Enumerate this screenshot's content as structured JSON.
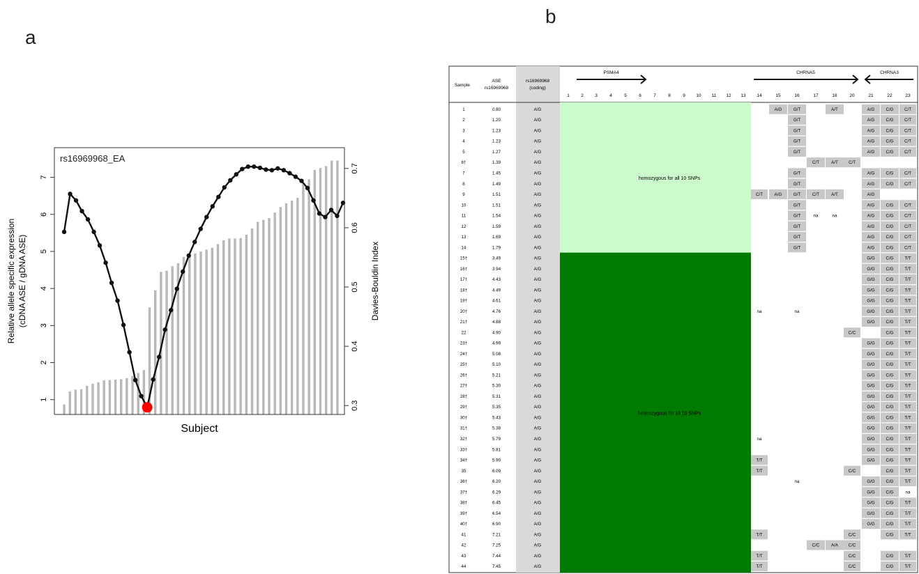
{
  "panels": {
    "a": "a",
    "b": "b"
  },
  "chart_data": [
    {
      "type": "bar+line",
      "title": "rs16969968_EA",
      "xlabel": "Subject",
      "ylabel": [
        "Relative allele specific expression",
        "(cDNA ASE / gDNA ASE)"
      ],
      "y2label": "Davies-Bouldin Index",
      "ylim": [
        0.6,
        7.8
      ],
      "yticks": [
        1,
        2,
        3,
        4,
        5,
        6,
        7
      ],
      "y2lim": [
        0.285,
        0.735
      ],
      "y2ticks": [
        0.3,
        0.4,
        0.5,
        0.6,
        0.7
      ],
      "series": [
        {
          "type": "bar",
          "axis": "left",
          "values": [
            0.87,
            1.22,
            1.27,
            1.28,
            1.37,
            1.43,
            1.47,
            1.52,
            1.53,
            1.54,
            1.55,
            1.58,
            1.64,
            1.72,
            1.8,
            3.49,
            3.95,
            4.45,
            4.48,
            4.6,
            4.68,
            4.85,
            4.9,
            4.95,
            5.0,
            5.05,
            5.1,
            5.2,
            5.3,
            5.35,
            5.35,
            5.36,
            5.45,
            5.62,
            5.8,
            5.85,
            5.9,
            6.05,
            6.2,
            6.3,
            6.37,
            6.45,
            6.85,
            6.95,
            7.2,
            7.25,
            7.3,
            7.45,
            7.45
          ]
        },
        {
          "type": "line",
          "axis": "right",
          "values": [
            0.593,
            0.657,
            0.646,
            0.628,
            0.614,
            0.593,
            0.57,
            0.541,
            0.507,
            0.477,
            0.436,
            0.39,
            0.343,
            0.316,
            0.297,
            0.344,
            0.382,
            0.428,
            0.461,
            0.497,
            0.526,
            0.553,
            0.576,
            0.598,
            0.618,
            0.636,
            0.652,
            0.668,
            0.68,
            0.69,
            0.699,
            0.703,
            0.703,
            0.701,
            0.698,
            0.697,
            0.7,
            0.697,
            0.692,
            0.686,
            0.679,
            0.667,
            0.646,
            0.624,
            0.618,
            0.63,
            0.62,
            0.642
          ],
          "highlight_index": 14,
          "highlight_color": "#ff0000"
        }
      ]
    },
    {
      "type": "table",
      "headers": {
        "sample": "Sample",
        "ase": [
          "ASE",
          "rs16969968"
        ],
        "rs": [
          "rs16969968",
          "(coding)"
        ]
      },
      "genes": [
        {
          "name": "PSMA4",
          "direction": "right",
          "from": 2,
          "to": 6
        },
        {
          "name": "CHRNA5",
          "direction": "right",
          "from": 14,
          "to": 20
        },
        {
          "name": "CHRNA3",
          "direction": "left",
          "from": 21,
          "to": 23
        }
      ],
      "snp_numbers": [
        "1",
        "2",
        "3",
        "4",
        "5",
        "6",
        "7",
        "8",
        "9",
        "10",
        "11",
        "12",
        "13",
        "14",
        "15",
        "16",
        "17",
        "18",
        "20",
        "21",
        "22",
        "23"
      ],
      "block_labels": {
        "homozygous": "homozygous for all 10 SNPs",
        "heterozygous": "heterozygous for all 10 SNPs"
      },
      "colors": {
        "homozygous": "#ccfccc",
        "heterozygous": "#007a00",
        "gray_cell": "#c8c8c8",
        "rs_column": "#d9d9d9"
      },
      "rows": [
        {
          "sample": "1",
          "ase": "0.80",
          "rs": "A/G",
          "block": "homo",
          "cells": {
            "15": "A/G",
            "16": "G/T",
            "18": "A/T",
            "21": "A/G",
            "22": "C/G",
            "23": "C/T"
          }
        },
        {
          "sample": "2",
          "ase": "1.20",
          "rs": "A/G",
          "block": "homo",
          "cells": {
            "16": "G/T",
            "21": "A/G",
            "22": "C/G",
            "23": "C/T"
          }
        },
        {
          "sample": "3",
          "ase": "1.23",
          "rs": "A/G",
          "block": "homo",
          "cells": {
            "16": "G/T",
            "21": "A/G",
            "22": "C/G",
            "23": "C/T"
          }
        },
        {
          "sample": "4",
          "ase": "1.23",
          "rs": "A/G",
          "block": "homo",
          "cells": {
            "16": "G/T",
            "21": "A/G",
            "22": "C/G",
            "23": "C/T"
          }
        },
        {
          "sample": "5",
          "ase": "1.27",
          "rs": "A/G",
          "block": "homo",
          "cells": {
            "16": "G/T",
            "21": "A/G",
            "22": "C/G",
            "23": "C/T"
          }
        },
        {
          "sample": "6†",
          "ase": "1.39",
          "rs": "A/G",
          "block": "homo",
          "cells": {
            "17": "C/T",
            "18": "A/T",
            "20": "C/T"
          }
        },
        {
          "sample": "7",
          "ase": "1.45",
          "rs": "A/G",
          "block": "homo",
          "cells": {
            "16": "G/T",
            "21": "A/G",
            "22": "C/G",
            "23": "C/T"
          }
        },
        {
          "sample": "8",
          "ase": "1.49",
          "rs": "A/G",
          "block": "homo",
          "cells": {
            "16": "G/T",
            "21": "A/G",
            "22": "C/G",
            "23": "C/T"
          }
        },
        {
          "sample": "9",
          "ase": "1.51",
          "rs": "A/G",
          "block": "homo",
          "cells": {
            "14": "C/T",
            "15": "A/G",
            "16": "G/T",
            "17": "C/T",
            "18": "A/T",
            "21": "A/G"
          }
        },
        {
          "sample": "10",
          "ase": "1.51",
          "rs": "A/G",
          "block": "homo",
          "cells": {
            "16": "G/T",
            "21": "A/G",
            "22": "C/G",
            "23": "C/T"
          }
        },
        {
          "sample": "11",
          "ase": "1.54",
          "rs": "A/G",
          "block": "homo",
          "cells": {
            "16": "G/T",
            "17": "na",
            "18": "na",
            "21": "A/G",
            "22": "C/G",
            "23": "C/T"
          }
        },
        {
          "sample": "12",
          "ase": "1.59",
          "rs": "A/G",
          "block": "homo",
          "cells": {
            "16": "G/T",
            "21": "A/G",
            "22": "C/G",
            "23": "C/T"
          }
        },
        {
          "sample": "13",
          "ase": "1.69",
          "rs": "A/G",
          "block": "homo",
          "cells": {
            "16": "G/T",
            "21": "A/G",
            "22": "C/G",
            "23": "C/T"
          }
        },
        {
          "sample": "14",
          "ase": "1.79",
          "rs": "A/G",
          "block": "homo",
          "cells": {
            "16": "G/T",
            "21": "A/G",
            "22": "C/G",
            "23": "C/T"
          }
        },
        {
          "sample": "15†",
          "ase": "3.49",
          "rs": "A/G",
          "block": "hetero",
          "cells": {
            "21": "G/G",
            "22": "C/G",
            "23": "T/T"
          }
        },
        {
          "sample": "16†",
          "ase": "3.94",
          "rs": "A/G",
          "block": "hetero",
          "cells": {
            "21": "G/G",
            "22": "C/G",
            "23": "T/T"
          }
        },
        {
          "sample": "17†",
          "ase": "4.43",
          "rs": "A/G",
          "block": "hetero",
          "cells": {
            "21": "G/G",
            "22": "C/G",
            "23": "T/T"
          }
        },
        {
          "sample": "18†",
          "ase": "4.49",
          "rs": "A/G",
          "block": "hetero",
          "cells": {
            "21": "G/G",
            "22": "C/G",
            "23": "T/T"
          }
        },
        {
          "sample": "19†",
          "ase": "4.61",
          "rs": "A/G",
          "block": "hetero",
          "cells": {
            "21": "G/G",
            "22": "C/G",
            "23": "T/T"
          }
        },
        {
          "sample": "20†",
          "ase": "4.76",
          "rs": "A/G",
          "block": "hetero",
          "cells": {
            "14": "na",
            "16": "na",
            "21": "G/G",
            "22": "C/G",
            "23": "T/T"
          }
        },
        {
          "sample": "21†",
          "ase": "4.88",
          "rs": "A/G",
          "block": "hetero",
          "cells": {
            "21": "G/G",
            "22": "C/G",
            "23": "T/T"
          }
        },
        {
          "sample": "22",
          "ase": "4.90",
          "rs": "A/G",
          "block": "hetero",
          "cells": {
            "20": "C/C",
            "22": "C/G",
            "23": "T/T"
          }
        },
        {
          "sample": "23†",
          "ase": "4.99",
          "rs": "A/G",
          "block": "hetero",
          "cells": {
            "21": "G/G",
            "22": "C/G",
            "23": "T/T"
          }
        },
        {
          "sample": "24†",
          "ase": "5.08",
          "rs": "A/G",
          "block": "hetero",
          "cells": {
            "21": "G/G",
            "22": "C/G",
            "23": "T/T"
          }
        },
        {
          "sample": "25†",
          "ase": "5.10",
          "rs": "A/G",
          "block": "hetero",
          "cells": {
            "21": "G/G",
            "22": "C/G",
            "23": "T/T"
          }
        },
        {
          "sample": "26†",
          "ase": "5.21",
          "rs": "A/G",
          "block": "hetero",
          "cells": {
            "21": "G/G",
            "22": "C/G",
            "23": "T/T"
          }
        },
        {
          "sample": "27†",
          "ase": "5.30",
          "rs": "A/G",
          "block": "hetero",
          "cells": {
            "21": "G/G",
            "22": "C/G",
            "23": "T/T"
          }
        },
        {
          "sample": "28†",
          "ase": "5.31",
          "rs": "A/G",
          "block": "hetero",
          "cells": {
            "21": "G/G",
            "22": "C/G",
            "23": "T/T"
          }
        },
        {
          "sample": "29†",
          "ase": "5.35",
          "rs": "A/G",
          "block": "hetero",
          "cells": {
            "21": "G/G",
            "22": "C/G",
            "23": "T/T"
          }
        },
        {
          "sample": "30†",
          "ase": "5.43",
          "rs": "A/G",
          "block": "hetero",
          "cells": {
            "21": "G/G",
            "22": "C/G",
            "23": "T/T"
          }
        },
        {
          "sample": "31†",
          "ase": "5.38",
          "rs": "A/G",
          "block": "hetero",
          "cells": {
            "21": "G/G",
            "22": "C/G",
            "23": "T/T"
          }
        },
        {
          "sample": "32†",
          "ase": "5.79",
          "rs": "A/G",
          "block": "hetero",
          "cells": {
            "14": "na",
            "21": "G/G",
            "22": "C/G",
            "23": "T/T"
          }
        },
        {
          "sample": "33†",
          "ase": "5.81",
          "rs": "A/G",
          "block": "hetero",
          "cells": {
            "21": "G/G",
            "22": "C/G",
            "23": "T/T"
          }
        },
        {
          "sample": "34†",
          "ase": "5.90",
          "rs": "A/G",
          "block": "hetero",
          "cells": {
            "14": "T/T",
            "21": "G/G",
            "22": "C/G",
            "23": "T/T"
          }
        },
        {
          "sample": "35",
          "ase": "6.09",
          "rs": "A/G",
          "block": "hetero",
          "cells": {
            "14": "T/T",
            "20": "C/C",
            "22": "C/G",
            "23": "T/T"
          }
        },
        {
          "sample": "36†",
          "ase": "6.20",
          "rs": "A/G",
          "block": "hetero",
          "cells": {
            "16": "na",
            "21": "G/G",
            "22": "C/G",
            "23": "T/T"
          }
        },
        {
          "sample": "37†",
          "ase": "6.29",
          "rs": "A/G",
          "block": "hetero",
          "cells": {
            "21": "G/G",
            "22": "C/G",
            "23": "na"
          }
        },
        {
          "sample": "38†",
          "ase": "6.45",
          "rs": "A/G",
          "block": "hetero",
          "cells": {
            "21": "G/G",
            "22": "C/G",
            "23": "T/T"
          }
        },
        {
          "sample": "39†",
          "ase": "6.54",
          "rs": "A/G",
          "block": "hetero",
          "cells": {
            "21": "G/G",
            "22": "C/G",
            "23": "T/T"
          }
        },
        {
          "sample": "40†",
          "ase": "6.90",
          "rs": "A/G",
          "block": "hetero",
          "cells": {
            "21": "G/G",
            "22": "C/G",
            "23": "T/T"
          }
        },
        {
          "sample": "41",
          "ase": "7.21",
          "rs": "A/G",
          "block": "hetero",
          "cells": {
            "14": "T/T",
            "20": "C/C",
            "22": "C/G",
            "23": "T/T"
          }
        },
        {
          "sample": "42",
          "ase": "7.25",
          "rs": "A/G",
          "block": "hetero",
          "cells": {
            "17": "C/C",
            "18": "A/A",
            "20": "C/C"
          }
        },
        {
          "sample": "43",
          "ase": "7.44",
          "rs": "A/G",
          "block": "hetero",
          "cells": {
            "14": "T/T",
            "20": "C/C",
            "22": "C/G",
            "23": "T/T"
          }
        },
        {
          "sample": "44",
          "ase": "7.45",
          "rs": "A/G",
          "block": "hetero",
          "cells": {
            "14": "T/T",
            "20": "C/C",
            "22": "C/G",
            "23": "T/T"
          }
        }
      ]
    }
  ]
}
